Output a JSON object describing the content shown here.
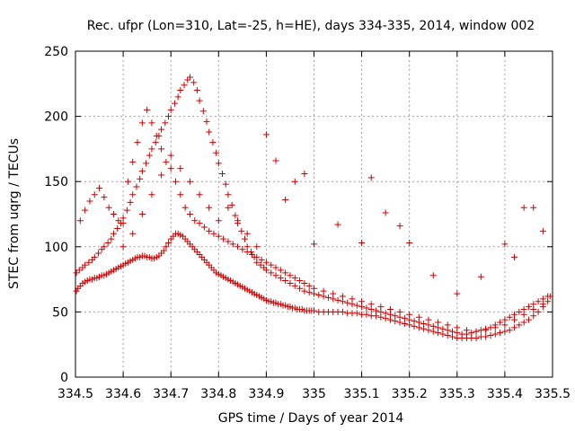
{
  "chart_data": {
    "type": "scatter",
    "title": "Rec. ufpr (Lon=310, Lat=-25, h=HE), days 334-335, 2014, window 002",
    "xlabel": "GPS time / Days of year 2014",
    "ylabel": "STEC from uqrg / TECUs",
    "xlim": [
      334.5,
      335.5
    ],
    "ylim": [
      0,
      250
    ],
    "xticks": [
      "334.5",
      "334.6",
      "334.7",
      "334.8",
      "334.9",
      "335",
      "335.1",
      "335.2",
      "335.3",
      "335.4",
      "335.5"
    ],
    "yticks": [
      "0",
      "50",
      "100",
      "150",
      "200",
      "250"
    ],
    "grid": true,
    "marker": "plus",
    "color": "#cc0000",
    "series": [
      {
        "x": [
          334.502,
          334.505,
          334.51,
          334.515,
          334.52,
          334.525,
          334.53,
          334.535,
          334.54,
          334.545,
          334.55,
          334.555,
          334.56,
          334.565,
          334.57,
          334.575,
          334.58,
          334.585,
          334.59,
          334.595,
          334.6,
          334.605,
          334.61,
          334.615,
          334.62,
          334.625,
          334.63,
          334.635,
          334.64,
          334.645,
          334.65,
          334.655,
          334.66,
          334.665,
          334.67,
          334.675,
          334.68,
          334.685,
          334.69,
          334.695,
          334.7,
          334.705,
          334.71,
          334.715,
          334.72,
          334.725,
          334.73,
          334.735,
          334.74,
          334.745,
          334.75,
          334.755,
          334.76,
          334.765,
          334.77,
          334.775,
          334.78,
          334.785,
          334.79,
          334.795,
          334.8,
          334.805,
          334.81,
          334.815,
          334.82,
          334.825,
          334.83,
          334.835,
          334.84,
          334.845,
          334.85,
          334.855,
          334.86,
          334.865,
          334.87,
          334.875,
          334.88,
          334.885,
          334.89,
          334.895,
          334.9,
          334.905,
          334.91,
          334.915,
          334.92,
          334.925,
          334.93,
          334.935,
          334.94,
          334.945,
          334.95,
          334.955,
          334.96,
          334.965,
          334.97,
          334.975,
          334.98,
          334.985,
          334.99,
          334.995,
          335.0,
          335.01,
          335.02,
          335.03,
          335.04,
          335.05,
          335.06,
          335.07,
          335.08,
          335.09,
          335.1,
          335.11,
          335.12,
          335.13,
          335.14,
          335.15,
          335.16,
          335.17,
          335.18,
          335.19,
          335.2,
          335.21,
          335.22,
          335.23,
          335.24,
          335.25,
          335.26,
          335.27,
          335.28,
          335.29,
          335.3,
          335.31,
          335.32,
          335.33,
          335.34,
          335.35,
          335.36,
          335.37,
          335.38,
          335.39,
          335.4,
          335.41,
          335.42,
          335.43,
          335.44,
          335.45,
          335.46,
          335.47,
          335.48,
          335.49,
          335.495
        ],
        "y": [
          66,
          68,
          70,
          72,
          73,
          74,
          75,
          75,
          76,
          76,
          77,
          78,
          78,
          79,
          80,
          81,
          82,
          83,
          84,
          85,
          86,
          87,
          88,
          89,
          90,
          91,
          92,
          92,
          93,
          93,
          92,
          92,
          91,
          91,
          92,
          93,
          95,
          97,
          100,
          103,
          106,
          108,
          110,
          110,
          109,
          108,
          106,
          104,
          102,
          100,
          98,
          96,
          94,
          92,
          90,
          88,
          86,
          84,
          82,
          80,
          79,
          78,
          77,
          76,
          75,
          74,
          73,
          72,
          71,
          70,
          69,
          68,
          67,
          66,
          65,
          64,
          63,
          62,
          61,
          60,
          59,
          58,
          58,
          57,
          57,
          56,
          56,
          55,
          55,
          54,
          54,
          53,
          53,
          52,
          52,
          52,
          51,
          51,
          51,
          51,
          51,
          50,
          50,
          50,
          50,
          50,
          50,
          49,
          49,
          49,
          48,
          48,
          47,
          47,
          46,
          45,
          44,
          43,
          42,
          41,
          40,
          39,
          38,
          37,
          36,
          35,
          34,
          33,
          32,
          31,
          30,
          30,
          30,
          30,
          30,
          31,
          31,
          32,
          33,
          34,
          35,
          36,
          38,
          40,
          42,
          44,
          47,
          50,
          54,
          58,
          62
        ]
      },
      {
        "x": [
          334.502,
          334.508,
          334.515,
          334.52,
          334.528,
          334.535,
          334.54,
          334.548,
          334.555,
          334.56,
          334.568,
          334.575,
          334.58,
          334.588,
          334.595,
          334.6,
          334.608,
          334.615,
          334.62,
          334.628,
          334.635,
          334.64,
          334.648,
          334.655,
          334.66,
          334.668,
          334.675,
          334.68,
          334.688,
          334.695,
          334.7,
          334.708,
          334.715,
          334.72,
          334.728,
          334.735,
          334.74,
          334.748,
          334.755,
          334.76,
          334.768,
          334.775,
          334.78,
          334.788,
          334.795,
          334.8,
          334.808,
          334.815,
          334.82,
          334.828,
          334.835,
          334.84,
          334.848,
          334.855,
          334.86,
          334.868,
          334.875,
          334.88,
          334.888,
          334.895,
          334.9,
          334.91,
          334.92,
          334.93,
          334.94,
          334.95,
          334.96,
          334.97,
          334.98,
          334.99,
          335.0,
          335.01,
          335.02,
          335.03,
          335.04,
          335.05,
          335.06,
          335.07,
          335.08,
          335.09,
          335.1,
          335.11,
          335.12,
          335.13,
          335.14,
          335.15,
          335.16,
          335.17,
          335.18,
          335.19,
          335.2,
          335.21,
          335.22,
          335.23,
          335.24,
          335.25,
          335.26,
          335.27,
          335.28,
          335.29,
          335.3,
          335.31,
          335.32,
          335.33,
          335.34,
          335.35,
          335.36,
          335.37,
          335.38,
          335.39,
          335.4,
          335.41,
          335.42,
          335.43,
          335.44,
          335.45,
          335.46,
          335.47,
          335.48,
          335.49
        ],
        "y": [
          80,
          82,
          84,
          86,
          88,
          90,
          92,
          95,
          98,
          100,
          103,
          106,
          110,
          114,
          118,
          122,
          128,
          134,
          140,
          146,
          152,
          158,
          164,
          170,
          175,
          180,
          185,
          190,
          195,
          200,
          205,
          210,
          215,
          220,
          224,
          228,
          230,
          226,
          220,
          212,
          204,
          196,
          188,
          180,
          172,
          164,
          156,
          148,
          140,
          132,
          124,
          118,
          112,
          106,
          100,
          96,
          92,
          88,
          86,
          84,
          82,
          80,
          78,
          76,
          74,
          72,
          70,
          68,
          66,
          65,
          64,
          63,
          62,
          61,
          60,
          59,
          58,
          57,
          56,
          55,
          54,
          53,
          52,
          51,
          50,
          49,
          48,
          47,
          46,
          45,
          44,
          43,
          42,
          41,
          40,
          39,
          38,
          37,
          36,
          35,
          34,
          33,
          33,
          34,
          35,
          36,
          37,
          38,
          40,
          42,
          44,
          46,
          48,
          50,
          52,
          54,
          56,
          58,
          60,
          62
        ]
      },
      {
        "x": [
          334.51,
          334.52,
          334.53,
          334.54,
          334.55,
          334.56,
          334.57,
          334.58,
          334.59,
          334.6,
          334.61,
          334.62,
          334.63,
          334.64,
          334.65,
          334.66,
          334.67,
          334.68,
          334.69,
          334.7,
          334.71,
          334.72,
          334.73,
          334.74,
          334.75,
          334.76,
          334.77,
          334.78,
          334.79,
          334.8,
          334.81,
          334.82,
          334.83,
          334.84,
          334.85,
          334.86,
          334.87,
          334.88,
          334.89,
          334.9,
          334.91,
          334.92,
          334.93,
          334.94,
          334.95,
          334.96,
          334.97,
          334.98,
          334.99,
          335.0,
          335.02,
          335.04,
          335.06,
          335.08,
          335.1,
          335.12,
          335.14,
          335.16,
          335.18,
          335.2,
          335.22,
          335.24,
          335.26,
          335.28,
          335.3,
          335.32,
          335.34,
          335.36,
          335.38,
          335.4,
          335.42,
          335.44,
          335.46,
          335.48
        ],
        "y": [
          120,
          128,
          135,
          140,
          145,
          138,
          130,
          125,
          120,
          118,
          150,
          165,
          180,
          195,
          205,
          195,
          185,
          175,
          165,
          160,
          150,
          140,
          130,
          125,
          120,
          118,
          115,
          112,
          110,
          108,
          106,
          104,
          102,
          100,
          98,
          96,
          94,
          92,
          90,
          88,
          86,
          84,
          82,
          80,
          78,
          76,
          74,
          72,
          70,
          68,
          66,
          64,
          62,
          60,
          58,
          56,
          54,
          52,
          50,
          48,
          46,
          44,
          42,
          40,
          38,
          36,
          35,
          36,
          38,
          40,
          44,
          48,
          52,
          56
        ]
      },
      {
        "x": [
          334.6,
          334.62,
          334.64,
          334.66,
          334.68,
          334.7,
          334.72,
          334.74,
          334.76,
          334.78,
          334.8,
          334.82,
          334.84,
          334.86,
          334.88,
          334.9,
          334.92,
          334.94,
          334.96,
          334.98,
          335.0,
          335.05,
          335.1,
          335.12,
          335.15,
          335.18,
          335.2,
          335.25,
          335.3,
          335.35,
          335.4,
          335.42,
          335.44,
          335.46,
          335.48
        ],
        "y": [
          100,
          110,
          125,
          140,
          155,
          170,
          160,
          150,
          140,
          130,
          120,
          130,
          120,
          110,
          100,
          186,
          166,
          136,
          150,
          156,
          102,
          117,
          103,
          153,
          126,
          116,
          103,
          78,
          64,
          77,
          102,
          92,
          130,
          130,
          112
        ]
      }
    ]
  }
}
